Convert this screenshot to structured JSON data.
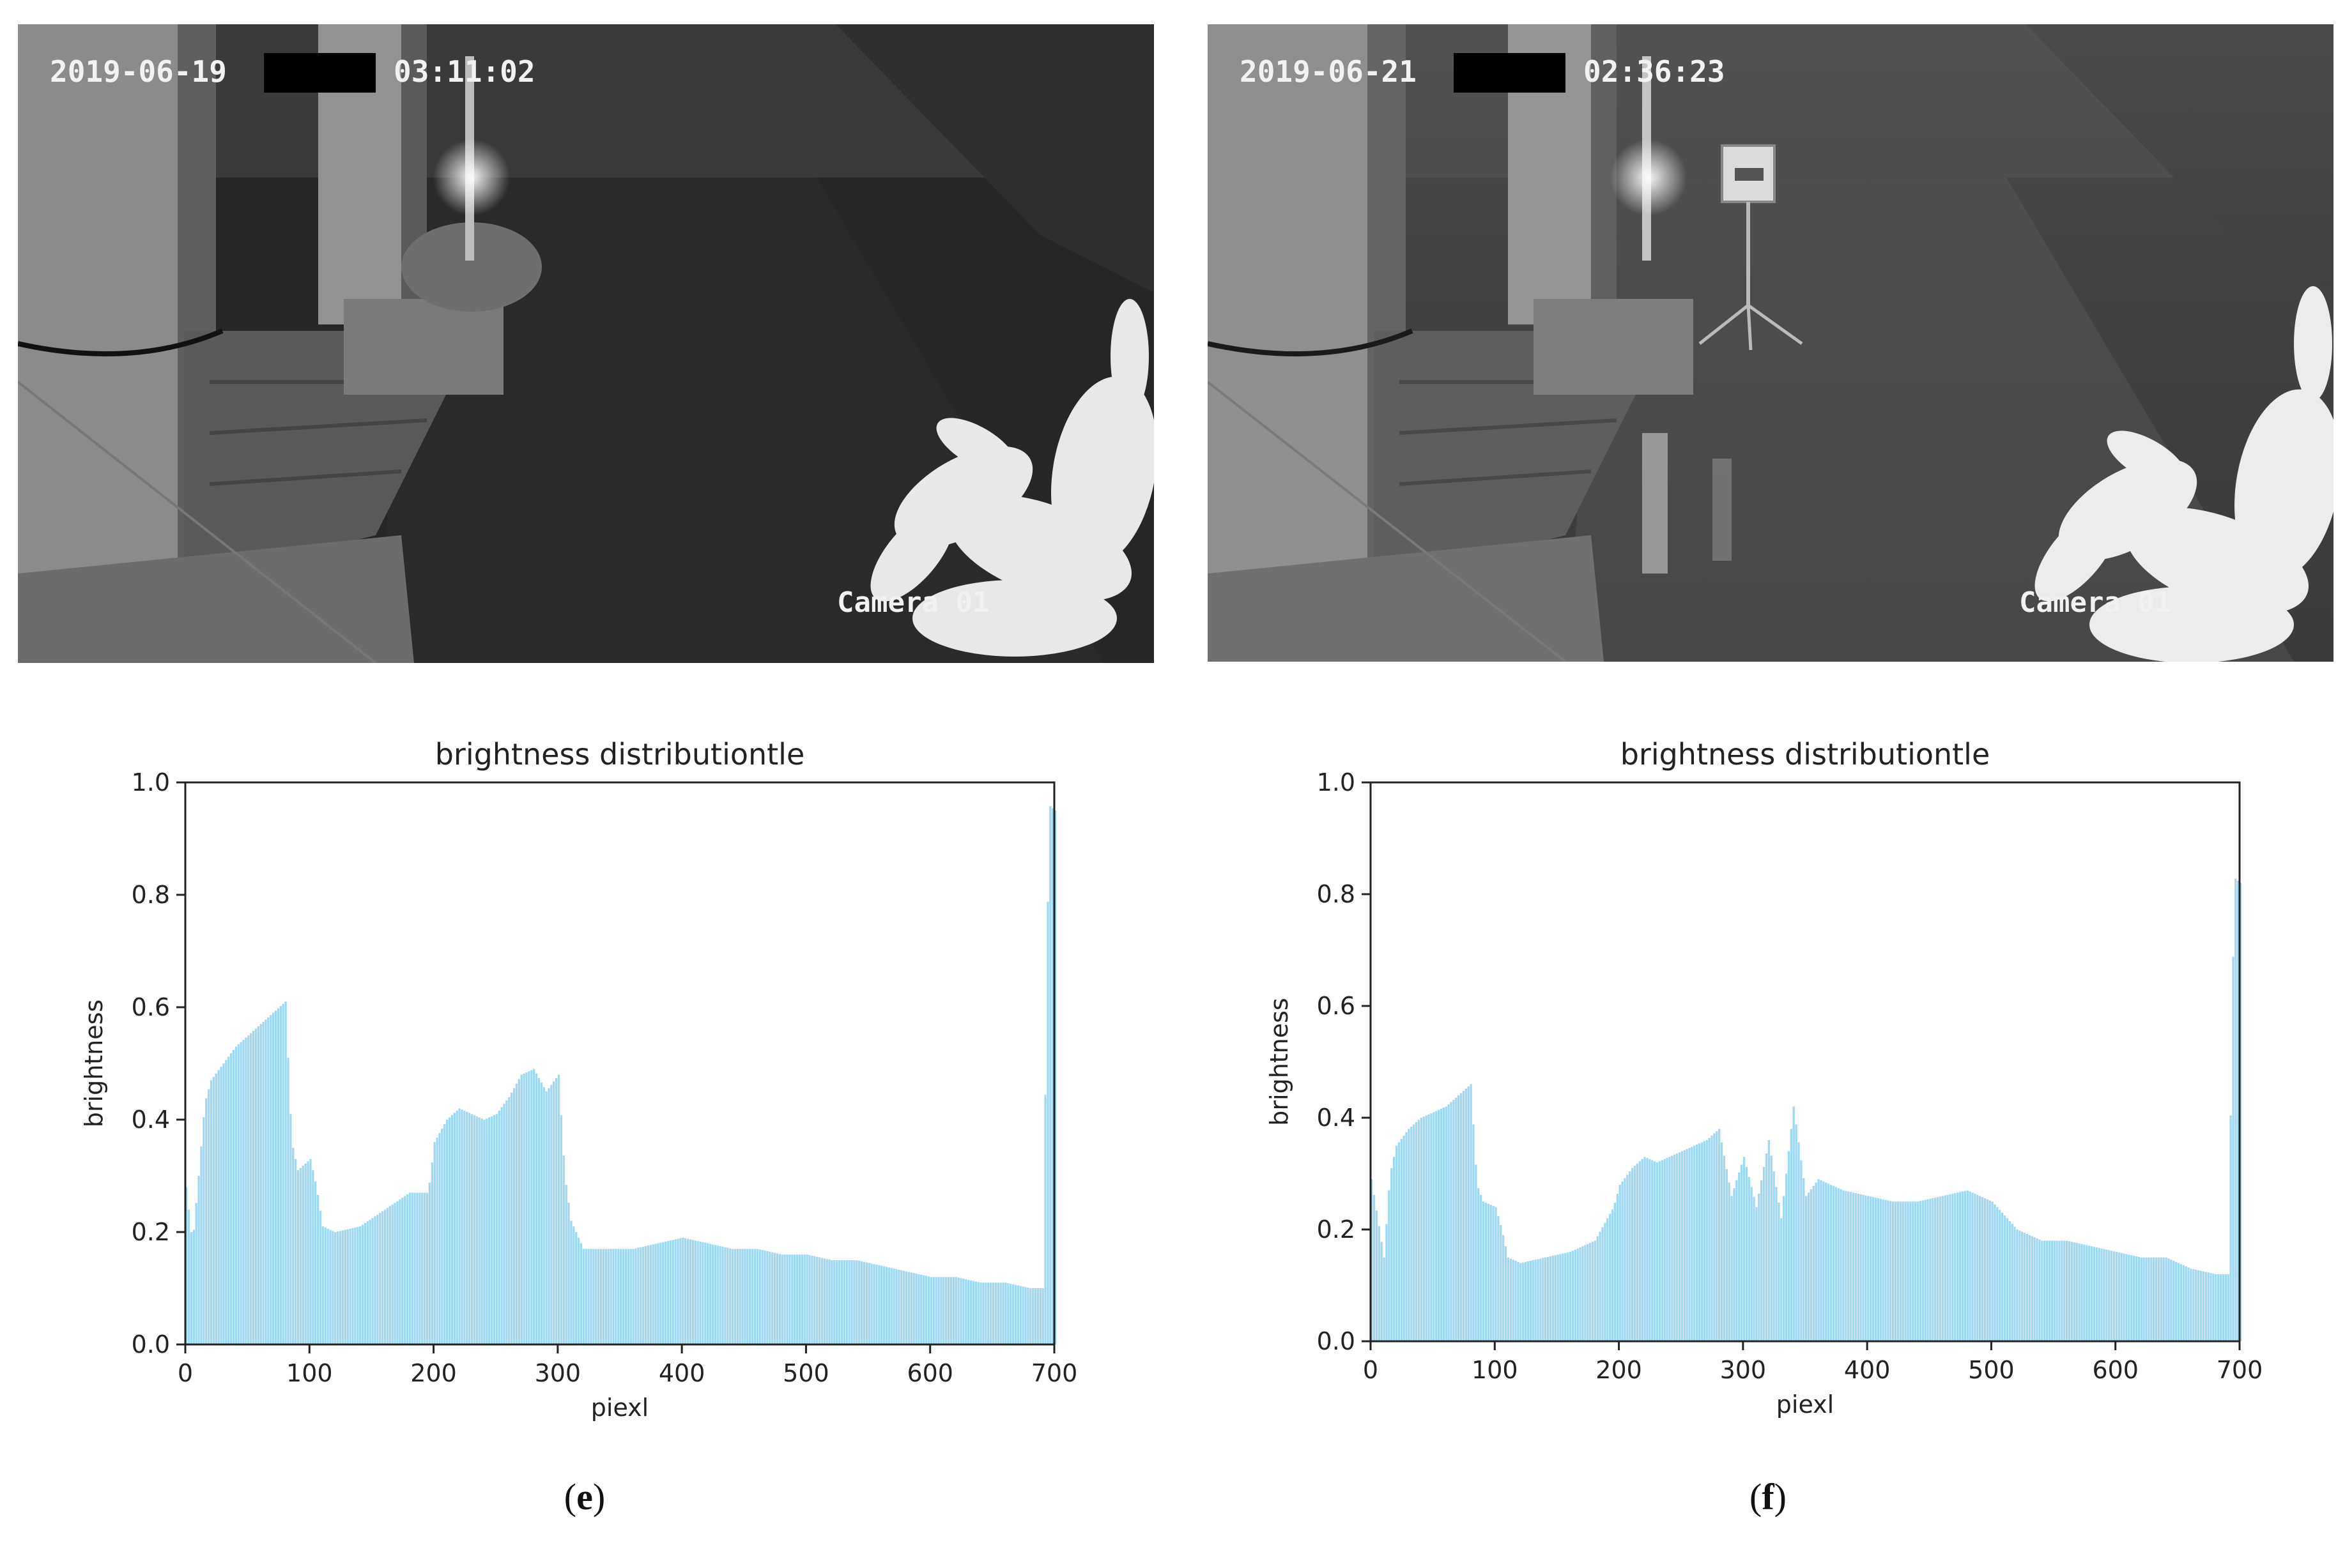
{
  "panels": [
    {
      "id": "e",
      "photo": {
        "date": "2019-06-19",
        "time": "03:11:02",
        "camera": "Camera 01",
        "has_sign": false
      },
      "caption_letter": "e"
    },
    {
      "id": "f",
      "photo": {
        "date": "2019-06-21",
        "time": "02:36:23",
        "camera": "Camera 01",
        "has_sign": true
      },
      "caption_letter": "f"
    }
  ],
  "colors": {
    "bar": "#9fd8f3",
    "axis": "#222222"
  },
  "chart_data": [
    {
      "type": "bar",
      "title": "brightness distributiontle",
      "xlabel": "piexl",
      "ylabel": "brightness",
      "xlim": [
        0,
        700
      ],
      "ylim": [
        0.0,
        1.0
      ],
      "xticks": [
        "0",
        "100",
        "200",
        "300",
        "400",
        "500",
        "600",
        "700"
      ],
      "yticks": [
        "0.0",
        "0.2",
        "0.4",
        "0.6",
        "0.8",
        "1.0"
      ],
      "x": [
        0,
        5,
        10,
        15,
        20,
        30,
        40,
        50,
        60,
        70,
        80,
        85,
        90,
        100,
        105,
        110,
        120,
        140,
        160,
        180,
        195,
        200,
        210,
        220,
        230,
        240,
        250,
        260,
        270,
        280,
        285,
        290,
        300,
        305,
        310,
        320,
        340,
        360,
        380,
        400,
        420,
        440,
        460,
        480,
        500,
        520,
        540,
        560,
        580,
        600,
        620,
        640,
        660,
        680,
        690,
        695,
        700
      ],
      "values": [
        0.28,
        0.18,
        0.3,
        0.43,
        0.47,
        0.5,
        0.53,
        0.55,
        0.57,
        0.59,
        0.61,
        0.36,
        0.31,
        0.33,
        0.28,
        0.21,
        0.2,
        0.21,
        0.24,
        0.27,
        0.27,
        0.36,
        0.4,
        0.42,
        0.41,
        0.4,
        0.41,
        0.44,
        0.48,
        0.49,
        0.47,
        0.45,
        0.48,
        0.3,
        0.22,
        0.17,
        0.17,
        0.17,
        0.18,
        0.19,
        0.18,
        0.17,
        0.17,
        0.16,
        0.16,
        0.15,
        0.15,
        0.14,
        0.13,
        0.12,
        0.12,
        0.11,
        0.11,
        0.1,
        0.1,
        0.96,
        0.95
      ]
    },
    {
      "type": "bar",
      "title": "brightness distributiontle",
      "xlabel": "piexl",
      "ylabel": "brightness",
      "xlim": [
        0,
        700
      ],
      "ylim": [
        0.0,
        1.0
      ],
      "xticks": [
        "0",
        "100",
        "200",
        "300",
        "400",
        "500",
        "600",
        "700"
      ],
      "yticks": [
        "0.0",
        "0.2",
        "0.4",
        "0.6",
        "0.8",
        "1.0"
      ],
      "x": [
        0,
        5,
        10,
        15,
        20,
        30,
        40,
        50,
        60,
        70,
        80,
        85,
        90,
        100,
        105,
        110,
        120,
        140,
        160,
        180,
        195,
        200,
        210,
        220,
        230,
        240,
        250,
        260,
        270,
        280,
        290,
        300,
        310,
        320,
        330,
        340,
        350,
        360,
        380,
        400,
        420,
        440,
        460,
        480,
        500,
        520,
        540,
        560,
        580,
        600,
        620,
        640,
        660,
        680,
        690,
        695,
        700
      ],
      "values": [
        0.29,
        0.22,
        0.15,
        0.3,
        0.35,
        0.38,
        0.4,
        0.41,
        0.42,
        0.44,
        0.46,
        0.28,
        0.25,
        0.24,
        0.2,
        0.15,
        0.14,
        0.15,
        0.16,
        0.18,
        0.24,
        0.28,
        0.31,
        0.33,
        0.32,
        0.33,
        0.34,
        0.35,
        0.36,
        0.38,
        0.26,
        0.33,
        0.24,
        0.36,
        0.22,
        0.42,
        0.26,
        0.29,
        0.27,
        0.26,
        0.25,
        0.25,
        0.26,
        0.27,
        0.25,
        0.2,
        0.18,
        0.18,
        0.17,
        0.16,
        0.15,
        0.15,
        0.13,
        0.12,
        0.12,
        0.83,
        0.82
      ]
    }
  ]
}
